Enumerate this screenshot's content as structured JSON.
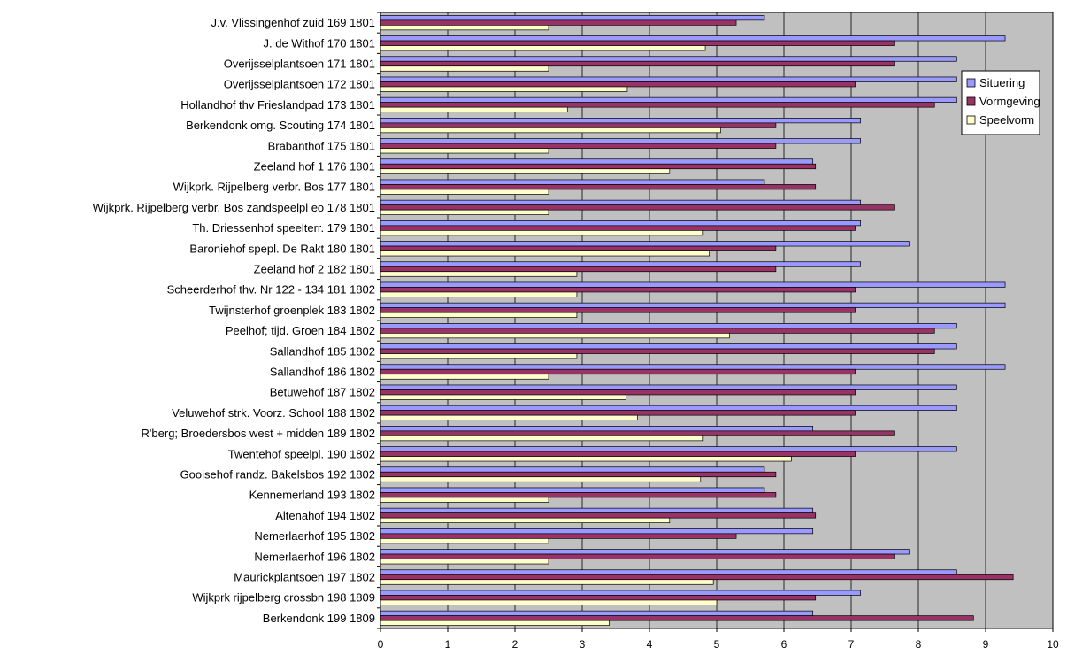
{
  "chart_data": {
    "type": "bar",
    "orientation": "horizontal",
    "title": "",
    "xlabel": "",
    "ylabel": "",
    "xlim": [
      0,
      10
    ],
    "xticks": [
      "0",
      "1",
      "2",
      "3",
      "4",
      "5",
      "6",
      "7",
      "8",
      "9",
      "10"
    ],
    "grid": true,
    "legend_position": "top-right",
    "plot_background": "#c0c0c0",
    "categories": [
      "J.v. Vlissingenhof zuid 169 1801",
      "J. de Withof 170 1801",
      "Overijsselplantsoen 171 1801",
      "Overijsselplantsoen 172 1801",
      "Hollandhof thv Frieslandpad 173 1801",
      "Berkendonk omg. Scouting 174 1801",
      "Brabanthof 175 1801",
      "Zeeland hof 1 176 1801",
      "Wijkprk. Rijpelberg verbr. Bos 177 1801",
      "Wijkprk. Rijpelberg verbr. Bos zandspeelpl eo 178 1801",
      "Th. Driessenhof speelterr. 179 1801",
      "Baroniehof spepl. De Rakt 180 1801",
      "Zeeland hof 2 182 1801",
      "Scheerderhof thv. Nr 122 - 134 181 1802",
      "Twijnsterhof groenplek 183 1802",
      "Peelhof; tijd. Groen  184 1802",
      "Sallandhof 185 1802",
      "Sallandhof 186 1802",
      "Betuwehof 187 1802",
      "Veluwehof strk. Voorz. School 188 1802",
      "R'berg; Broedersbos west + midden 189 1802",
      "Twentehof speelpl. 190 1802",
      "Gooisehof randz. Bakelsbos 192 1802",
      "Kennemerland 193 1802",
      "Altenahof 194 1802",
      "Nemerlaerhof 195 1802",
      "Nemerlaerhof 196 1802",
      "Maurickplantsoen 197 1802",
      "Wijkprk rijpelberg crossbn 198 1809",
      "Berkendonk 199 1809"
    ],
    "series": [
      {
        "name": "Situering",
        "color": "#9999ff",
        "values": [
          5.71,
          9.29,
          8.57,
          8.57,
          8.57,
          7.14,
          7.14,
          6.43,
          5.71,
          7.14,
          7.14,
          7.86,
          7.14,
          9.29,
          9.29,
          8.57,
          8.57,
          9.29,
          8.57,
          8.57,
          6.43,
          8.57,
          5.71,
          5.71,
          6.43,
          6.43,
          7.86,
          8.57,
          7.14,
          6.43
        ]
      },
      {
        "name": "Vormgeving",
        "color": "#993366",
        "values": [
          5.29,
          7.65,
          7.65,
          7.06,
          8.24,
          5.88,
          5.88,
          6.47,
          6.47,
          7.65,
          7.06,
          5.88,
          5.88,
          7.06,
          7.06,
          8.24,
          8.24,
          7.06,
          7.06,
          7.06,
          7.65,
          7.06,
          5.88,
          5.88,
          6.47,
          5.29,
          7.65,
          9.41,
          6.47,
          8.82
        ]
      },
      {
        "name": "Speelvorm",
        "color": "#ffffcc",
        "values": [
          2.5,
          4.83,
          2.5,
          3.67,
          2.78,
          5.06,
          2.5,
          4.3,
          2.5,
          2.5,
          4.8,
          4.89,
          2.92,
          2.92,
          2.92,
          5.19,
          2.92,
          2.5,
          3.65,
          3.82,
          4.8,
          6.11,
          4.76,
          2.5,
          4.3,
          2.5,
          2.5,
          4.95,
          5.0,
          3.4
        ]
      }
    ]
  }
}
